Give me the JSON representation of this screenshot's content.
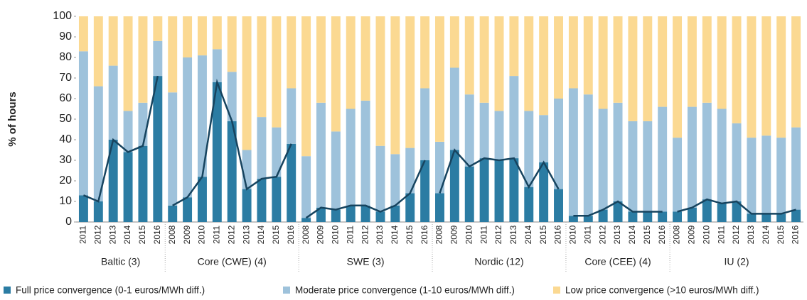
{
  "chart_data": {
    "type": "stacked_bar_line",
    "y_label": "% of hours",
    "groups": [
      {
        "label": "Baltic (3)",
        "categories": [
          "2011",
          "2012",
          "2013",
          "2014",
          "2015",
          "2016"
        ]
      },
      {
        "label": "Core (CWE) (4)",
        "categories": [
          "2008",
          "2009",
          "2010",
          "2011",
          "2012",
          "2013",
          "2014",
          "2015",
          "2016"
        ]
      },
      {
        "label": "SWE (3)",
        "categories": [
          "2008",
          "2009",
          "2010",
          "2011",
          "2012",
          "2013",
          "2014",
          "2015",
          "2016"
        ]
      },
      {
        "label": "Nordic (12)",
        "categories": [
          "2008",
          "2009",
          "2010",
          "2011",
          "2012",
          "2013",
          "2014",
          "2015",
          "2016"
        ]
      },
      {
        "label": "Core (CEE) (4)",
        "categories": [
          "2010",
          "2011",
          "2012",
          "2013",
          "2014",
          "2015",
          "2016"
        ]
      },
      {
        "label": "IU (2)",
        "categories": [
          "2008",
          "2009",
          "2010",
          "2011",
          "2012",
          "2013",
          "2014",
          "2015",
          "2016"
        ]
      }
    ],
    "series": [
      {
        "name": "Full price convergence (0-1 euros/MWh diff.)",
        "color": "#2b7ca3",
        "line_color": "#17445f",
        "values": [
          13,
          10,
          40,
          34,
          37,
          71,
          8,
          12,
          22,
          68,
          49,
          16,
          21,
          22,
          38,
          2,
          7,
          6,
          8,
          8,
          5,
          8,
          14,
          30,
          14,
          35,
          27,
          31,
          30,
          31,
          17,
          29,
          16,
          3,
          3,
          6,
          10,
          5,
          5,
          5,
          5,
          7,
          11,
          9,
          10,
          4,
          4,
          4,
          6
        ]
      },
      {
        "name": "Moderate price convergence (1-10 euros/MWh diff.)",
        "color": "#9ec2db",
        "values": [
          70,
          56,
          36,
          20,
          21,
          17,
          55,
          68,
          59,
          16,
          24,
          19,
          30,
          24,
          27,
          30,
          51,
          38,
          47,
          51,
          32,
          25,
          22,
          35,
          25,
          40,
          35,
          27,
          24,
          40,
          37,
          23,
          44,
          62,
          59,
          49,
          48,
          44,
          44,
          51,
          36,
          49,
          47,
          46,
          38,
          37,
          38,
          37,
          40
        ]
      },
      {
        "name": "Low price convergence  (>10 euros/MWh diff.)",
        "color": "#fbd992",
        "values": [
          17,
          34,
          24,
          46,
          42,
          12,
          37,
          20,
          19,
          16,
          27,
          65,
          49,
          54,
          35,
          68,
          42,
          56,
          45,
          41,
          63,
          67,
          64,
          35,
          61,
          25,
          38,
          42,
          46,
          29,
          46,
          48,
          40,
          35,
          38,
          45,
          42,
          51,
          51,
          44,
          59,
          44,
          42,
          45,
          52,
          59,
          58,
          59,
          54
        ]
      }
    ],
    "ylim": [
      0,
      100
    ],
    "yticks": [
      0,
      10,
      20,
      30,
      40,
      50,
      60,
      70,
      80,
      90,
      100
    ]
  }
}
